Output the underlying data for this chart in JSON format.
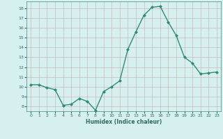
{
  "x": [
    0,
    1,
    2,
    3,
    4,
    5,
    6,
    7,
    8,
    9,
    10,
    11,
    12,
    13,
    14,
    15,
    16,
    17,
    18,
    19,
    20,
    21,
    22,
    23
  ],
  "y": [
    10.2,
    10.2,
    9.9,
    9.7,
    8.1,
    8.2,
    8.8,
    8.5,
    7.6,
    9.5,
    10.0,
    10.6,
    13.8,
    15.6,
    17.3,
    18.1,
    18.2,
    16.6,
    15.2,
    13.0,
    12.4,
    11.3,
    11.4,
    11.5
  ],
  "line_color": "#2e8b74",
  "marker_color": "#2e8b74",
  "bg_color": "#d6f0f0",
  "grid_color": "#c8b8b8",
  "xlabel": "Humidex (Indice chaleur)",
  "xlim": [
    -0.5,
    23.5
  ],
  "ylim": [
    7.5,
    18.7
  ],
  "yticks": [
    8,
    9,
    10,
    11,
    12,
    13,
    14,
    15,
    16,
    17,
    18
  ],
  "xticks": [
    0,
    1,
    2,
    3,
    4,
    5,
    6,
    7,
    8,
    9,
    10,
    11,
    12,
    13,
    14,
    15,
    16,
    17,
    18,
    19,
    20,
    21,
    22,
    23
  ]
}
